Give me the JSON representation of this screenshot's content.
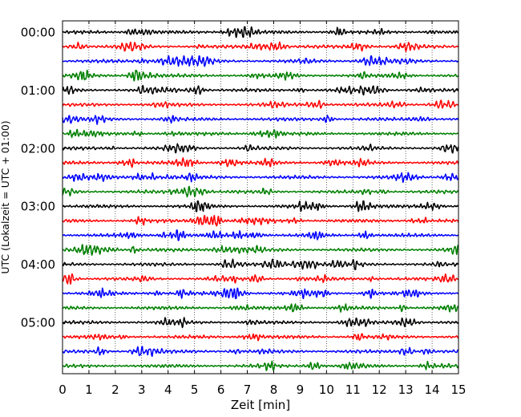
{
  "chart_data": {
    "type": "line",
    "title": "",
    "xlabel": "Zeit  [min]",
    "ylabel": "UTC (Lokalzeit = UTC + 01:00)",
    "xlim": [
      0,
      15
    ],
    "x_ticks": [
      "0",
      "1",
      "2",
      "3",
      "4",
      "5",
      "6",
      "7",
      "8",
      "9",
      "10",
      "11",
      "12",
      "13",
      "14",
      "15"
    ],
    "y_tick_labels": [
      "00:00",
      "01:00",
      "02:00",
      "03:00",
      "04:00",
      "05:00"
    ],
    "traces_per_hour": 4,
    "trace_minutes": 15,
    "colors": [
      "#000000",
      "#ff0000",
      "#0000ff",
      "#008000"
    ],
    "vertical_grid": true,
    "grid_style": "dotted",
    "series": [
      {
        "start": "00:00",
        "color": "#000000"
      },
      {
        "start": "00:15",
        "color": "#ff0000"
      },
      {
        "start": "00:30",
        "color": "#0000ff"
      },
      {
        "start": "00:45",
        "color": "#008000"
      },
      {
        "start": "01:00",
        "color": "#000000"
      },
      {
        "start": "01:15",
        "color": "#ff0000"
      },
      {
        "start": "01:30",
        "color": "#0000ff"
      },
      {
        "start": "01:45",
        "color": "#008000"
      },
      {
        "start": "02:00",
        "color": "#000000"
      },
      {
        "start": "02:15",
        "color": "#ff0000"
      },
      {
        "start": "02:30",
        "color": "#0000ff"
      },
      {
        "start": "02:45",
        "color": "#008000"
      },
      {
        "start": "03:00",
        "color": "#000000"
      },
      {
        "start": "03:15",
        "color": "#ff0000"
      },
      {
        "start": "03:30",
        "color": "#0000ff"
      },
      {
        "start": "03:45",
        "color": "#008000"
      },
      {
        "start": "04:00",
        "color": "#000000"
      },
      {
        "start": "04:15",
        "color": "#ff0000"
      },
      {
        "start": "04:30",
        "color": "#0000ff"
      },
      {
        "start": "04:45",
        "color": "#008000"
      },
      {
        "start": "05:00",
        "color": "#000000"
      },
      {
        "start": "05:15",
        "color": "#ff0000"
      },
      {
        "start": "05:30",
        "color": "#0000ff"
      },
      {
        "start": "05:45",
        "color": "#008000"
      }
    ]
  }
}
